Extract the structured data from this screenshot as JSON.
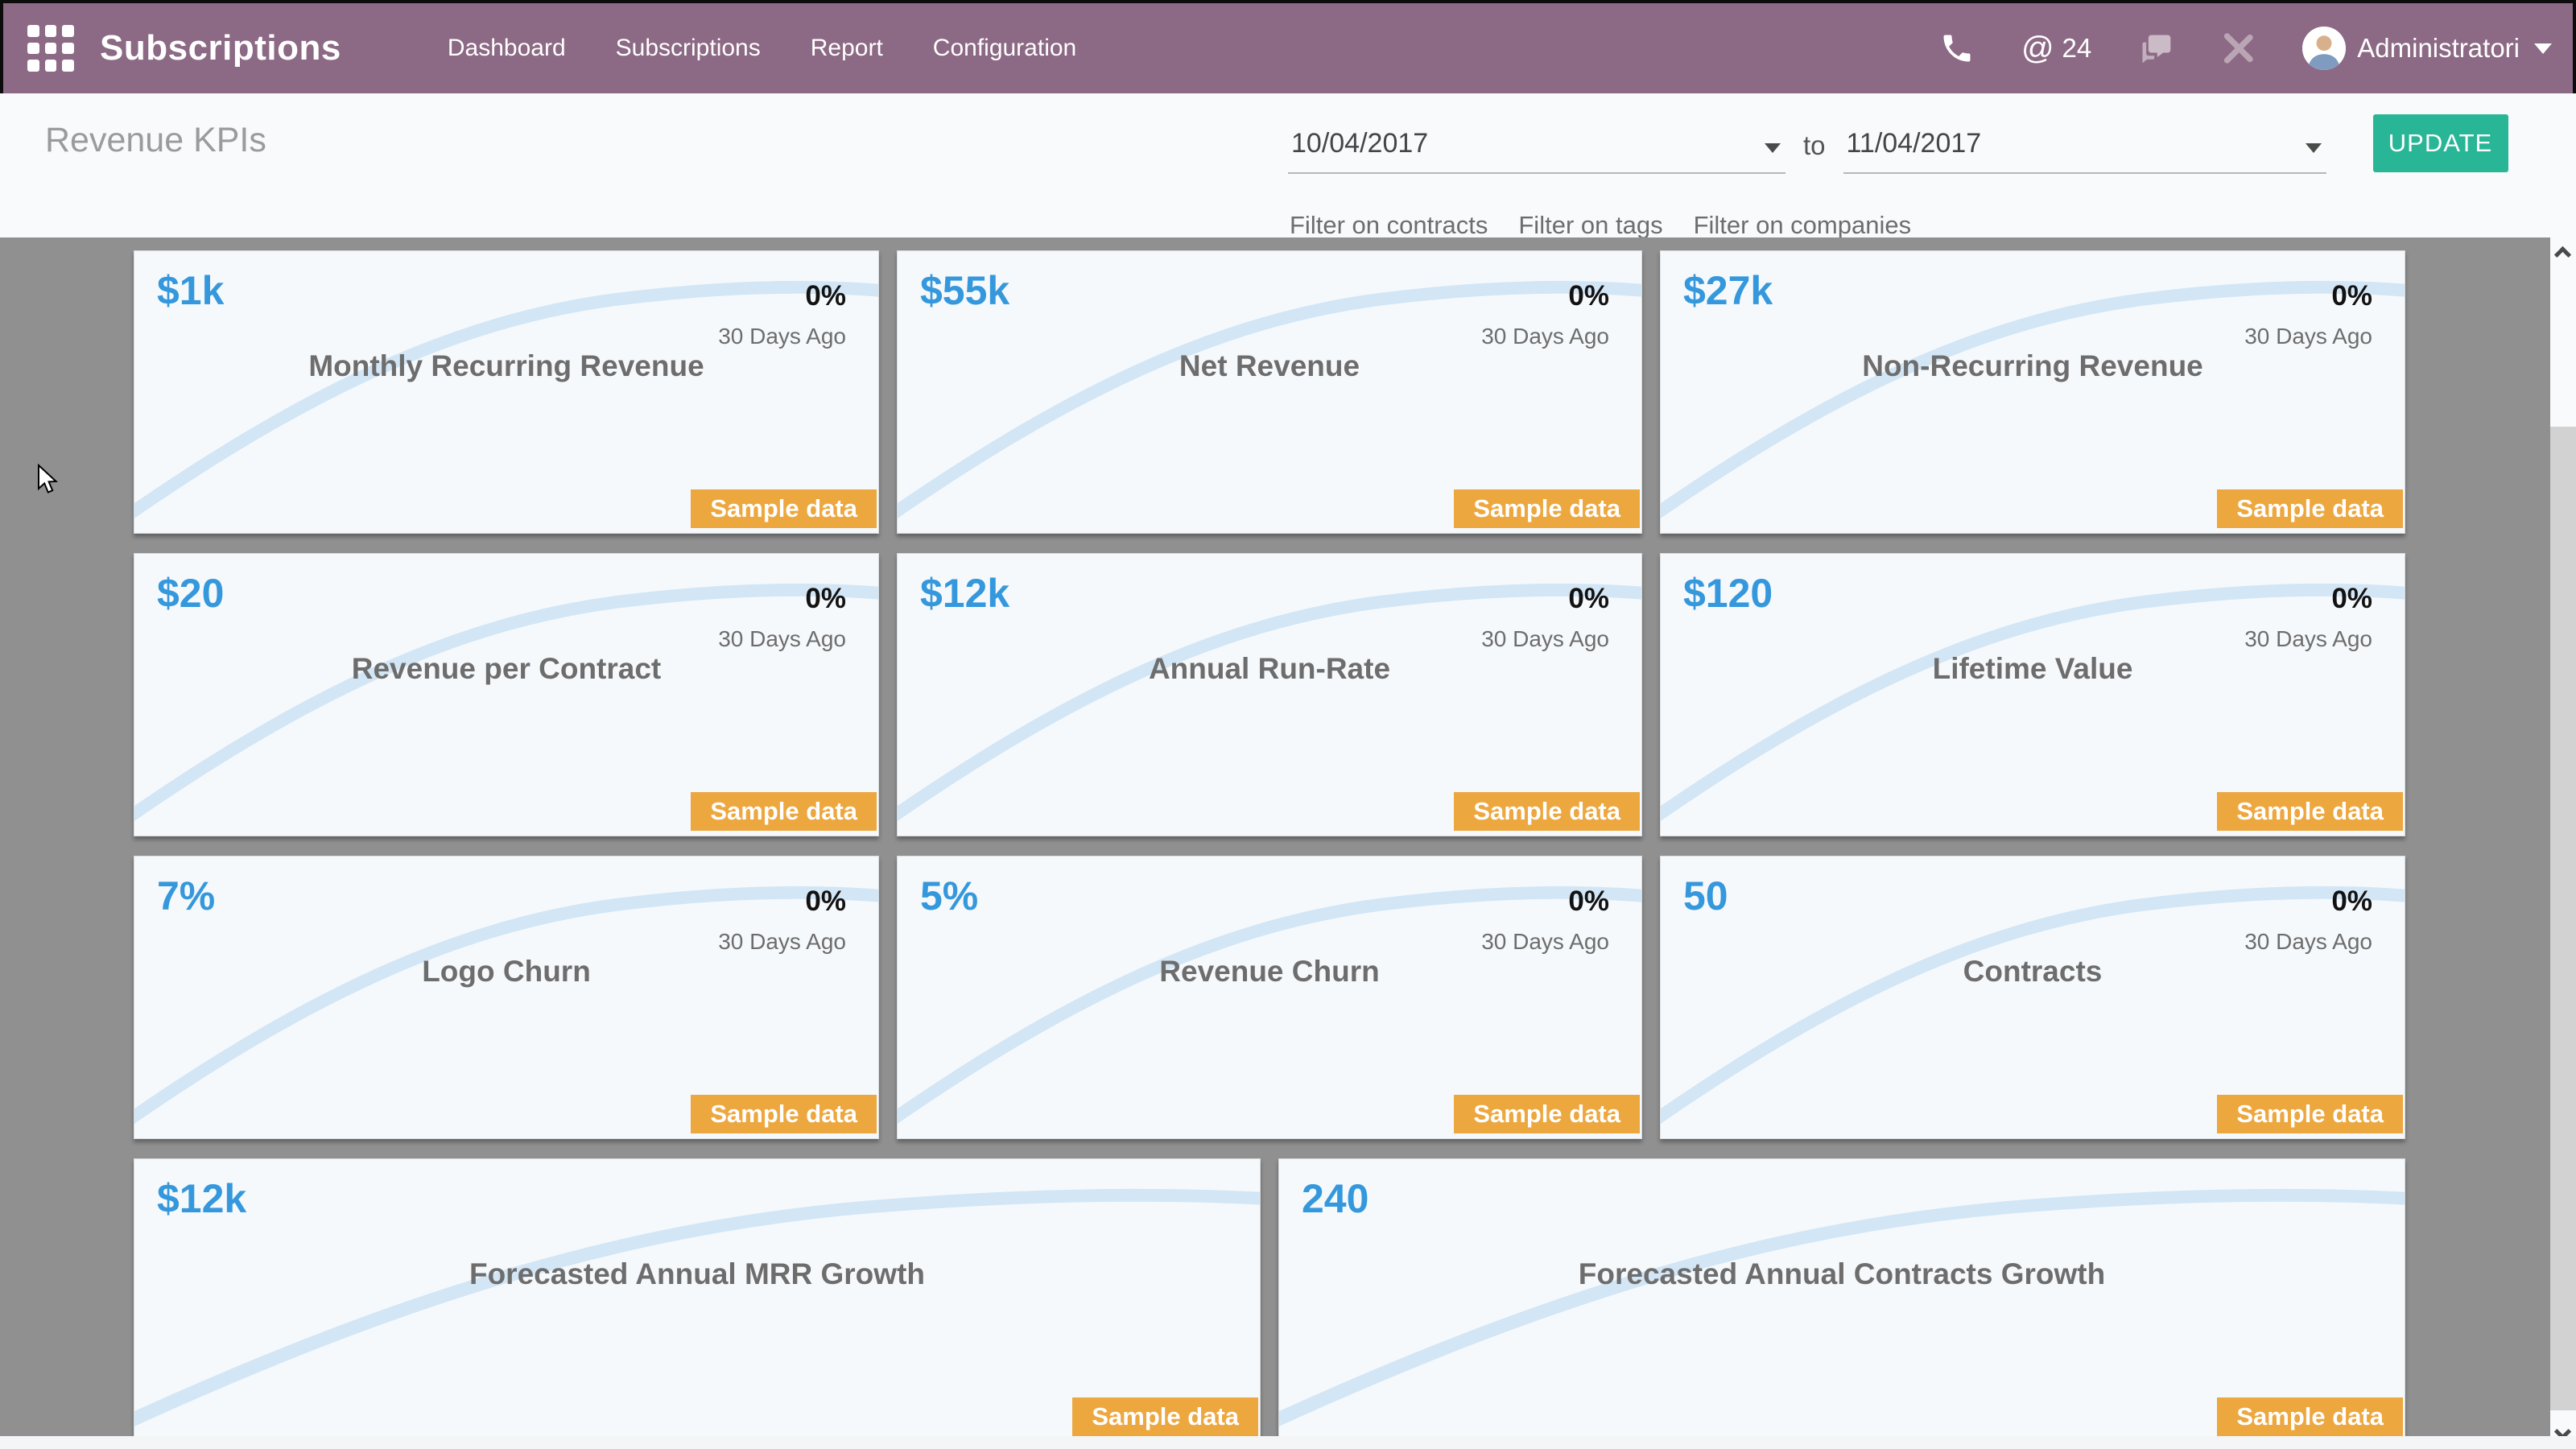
{
  "header": {
    "brand": "Subscriptions",
    "nav_items": [
      "Dashboard",
      "Subscriptions",
      "Report",
      "Configuration"
    ],
    "mention_at": "@",
    "mention_count": "24",
    "user_name": "Administratori"
  },
  "filter_bar": {
    "title": "Revenue KPIs",
    "date_from": "10/04/2017",
    "to_label": "to",
    "date_to": "11/04/2017",
    "update_button": "UPDATE",
    "filter_links": [
      "Filter on contracts",
      "Filter on tags",
      "Filter on companies"
    ]
  },
  "dashboard": {
    "rows": [
      [
        {
          "value": "$1k",
          "title": "Monthly Recurring Revenue",
          "delta": "0%",
          "delta_caption": "30 Days Ago",
          "badge": "Sample data"
        },
        {
          "value": "$55k",
          "title": "Net Revenue",
          "delta": "0%",
          "delta_caption": "30 Days Ago",
          "badge": "Sample data"
        },
        {
          "value": "$27k",
          "title": "Non-Recurring Revenue",
          "delta": "0%",
          "delta_caption": "30 Days Ago",
          "badge": "Sample data"
        }
      ],
      [
        {
          "value": "$20",
          "title": "Revenue per Contract",
          "delta": "0%",
          "delta_caption": "30 Days Ago",
          "badge": "Sample data"
        },
        {
          "value": "$12k",
          "title": "Annual Run-Rate",
          "delta": "0%",
          "delta_caption": "30 Days Ago",
          "badge": "Sample data"
        },
        {
          "value": "$120",
          "title": "Lifetime Value",
          "delta": "0%",
          "delta_caption": "30 Days Ago",
          "badge": "Sample data"
        }
      ],
      [
        {
          "value": "7%",
          "title": "Logo Churn",
          "delta": "0%",
          "delta_caption": "30 Days Ago",
          "badge": "Sample data"
        },
        {
          "value": "5%",
          "title": "Revenue Churn",
          "delta": "0%",
          "delta_caption": "30 Days Ago",
          "badge": "Sample data"
        },
        {
          "value": "50",
          "title": "Contracts",
          "delta": "0%",
          "delta_caption": "30 Days Ago",
          "badge": "Sample data"
        }
      ],
      [
        {
          "value": "$12k",
          "title": "Forecasted Annual MRR Growth",
          "badge": "Sample data",
          "wide": true
        },
        {
          "value": "240",
          "title": "Forecasted Annual Contracts Growth",
          "badge": "Sample data",
          "wide": true
        }
      ]
    ]
  },
  "colors": {
    "topbar_purple": "#8c6984",
    "page_background": "#909090",
    "card_background": "#f6f9fc",
    "kpi_value_blue": "#3598dc",
    "badge_orange": "#eda73f",
    "update_green": "#28b696",
    "sparkline_blue": "#d2e6f6"
  }
}
